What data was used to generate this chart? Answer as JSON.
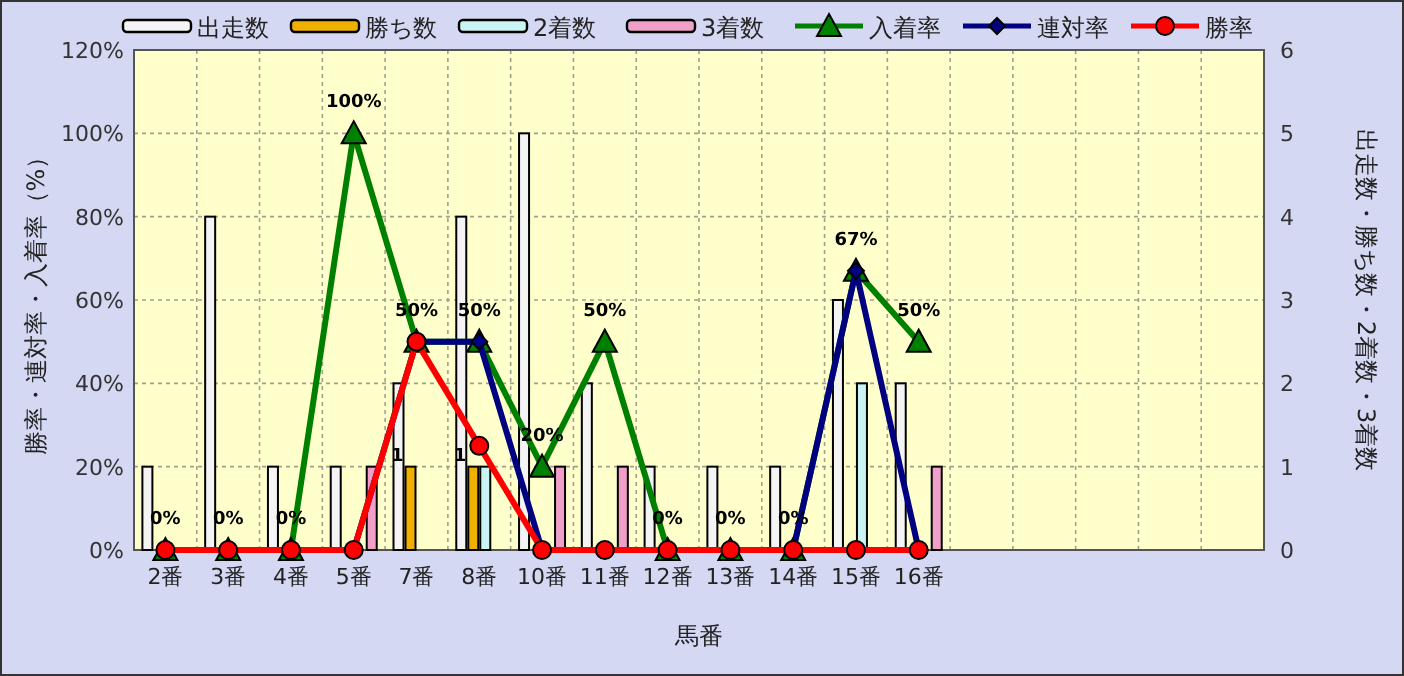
{
  "chart_data": {
    "type": "bar",
    "xlabel": "馬番",
    "ylabel": "勝率・連対率・入着率（%）",
    "y2label": "出走数・勝ち数・2着数・3着数",
    "categories": [
      "2番",
      "3番",
      "4番",
      "5番",
      "7番",
      "8番",
      "10番",
      "11番",
      "12番",
      "13番",
      "14番",
      "15番",
      "16番",
      null,
      null,
      null,
      null,
      null
    ],
    "series": [
      {
        "name": "出走数",
        "axis": "y2",
        "color": "#f4f4f4",
        "values": [
          1,
          4,
          1,
          1,
          2,
          4,
          5,
          2,
          1,
          1,
          1,
          3,
          2,
          null,
          null,
          null,
          null,
          null
        ]
      },
      {
        "name": "勝ち数",
        "axis": "y2",
        "color": "#f0b000",
        "values": [
          0,
          0,
          0,
          0,
          1,
          1,
          0,
          0,
          0,
          0,
          0,
          0,
          0,
          null,
          null,
          null,
          null,
          null
        ],
        "value_labels": [
          null,
          null,
          null,
          null,
          "1",
          "1",
          null,
          null,
          null,
          null,
          null,
          null,
          null,
          null,
          null,
          null,
          null,
          null
        ]
      },
      {
        "name": "2着数",
        "axis": "y2",
        "color": "#c8f4f4",
        "values": [
          0,
          0,
          0,
          0,
          0,
          1,
          0,
          0,
          0,
          0,
          0,
          2,
          0,
          null,
          null,
          null,
          null,
          null
        ]
      },
      {
        "name": "3着数",
        "axis": "y2",
        "color": "#f0a0c8",
        "values": [
          0,
          0,
          0,
          1,
          0,
          0,
          1,
          1,
          0,
          0,
          0,
          0,
          1,
          null,
          null,
          null,
          null,
          null
        ]
      },
      {
        "name": "入着率",
        "type": "line",
        "color": "#008000",
        "marker": "triangle",
        "data_labels": true,
        "value_labels": [
          "0%",
          "0%",
          "0%",
          "100%",
          "50%",
          "50%",
          "20%",
          "50%",
          "0%",
          "0%",
          "0%",
          "67%",
          "50%",
          null,
          null,
          null,
          null,
          null
        ],
        "values": [
          0,
          0,
          0,
          100,
          50,
          50,
          20,
          50,
          0,
          0,
          0,
          67,
          50,
          null,
          null,
          null,
          null,
          null
        ]
      },
      {
        "name": "連対率",
        "type": "line",
        "color": "#000080",
        "marker": "diamond",
        "values": [
          0,
          0,
          0,
          0,
          50,
          50,
          0,
          0,
          0,
          0,
          0,
          67,
          0,
          null,
          null,
          null,
          null,
          null
        ]
      },
      {
        "name": "勝率",
        "type": "line",
        "color": "#ff0000",
        "marker": "circle",
        "values": [
          0,
          0,
          0,
          0,
          50,
          25,
          0,
          0,
          0,
          0,
          0,
          0,
          0,
          null,
          null,
          null,
          null,
          null
        ]
      }
    ],
    "ylim": [
      0,
      120
    ],
    "yticks": [
      {
        "value": 0,
        "label": "0%"
      },
      {
        "value": 20,
        "label": "20%"
      },
      {
        "value": 40,
        "label": "40%"
      },
      {
        "value": 60,
        "label": "60%"
      },
      {
        "value": 80,
        "label": "80%"
      },
      {
        "value": 100,
        "label": "100%"
      },
      {
        "value": 120,
        "label": "120%"
      }
    ],
    "y2lim": [
      0,
      6
    ],
    "y2ticks": [
      0,
      1,
      2,
      3,
      4,
      5,
      6
    ],
    "grid": true,
    "legend": "top"
  }
}
